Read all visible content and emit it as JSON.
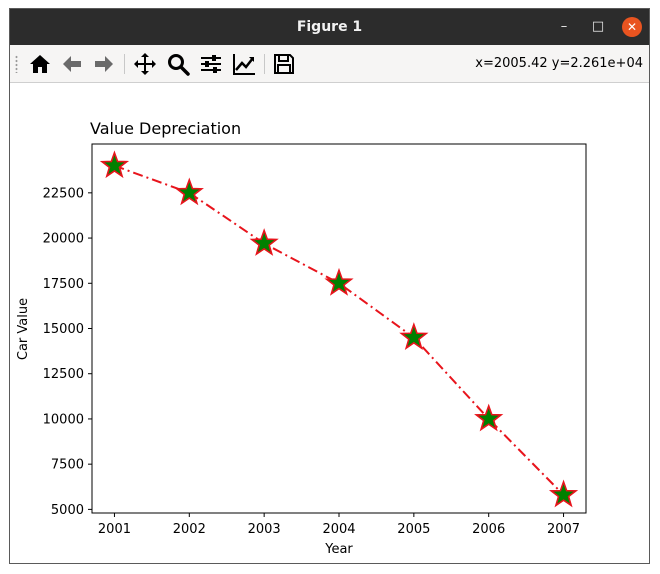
{
  "window": {
    "title": "Figure 1",
    "minimize_label": "–",
    "maximize_label": "□",
    "close_label": "✕"
  },
  "toolbar": {
    "buttons": [
      {
        "name": "home-button",
        "icon": "home-icon"
      },
      {
        "name": "back-button",
        "icon": "arrow-left-icon"
      },
      {
        "name": "forward-button",
        "icon": "arrow-right-icon"
      },
      {
        "name": "pan-button",
        "icon": "move-icon"
      },
      {
        "name": "zoom-button",
        "icon": "magnifier-icon"
      },
      {
        "name": "subplots-button",
        "icon": "sliders-icon"
      },
      {
        "name": "edit-axes-button",
        "icon": "chart-line-icon"
      },
      {
        "name": "save-button",
        "icon": "floppy-disk-icon"
      }
    ],
    "coords_readout": "x=2005.42 y=2.261e+04"
  },
  "chart_data": {
    "type": "line",
    "title": "Value Depreciation",
    "xlabel": "Year",
    "ylabel": "Car Value",
    "x": [
      2001,
      2002,
      2003,
      2004,
      2005,
      2006,
      2007
    ],
    "x_ticks": [
      "2001",
      "2002",
      "2003",
      "2004",
      "2005",
      "2006",
      "2007"
    ],
    "y_ticks": [
      "5000",
      "7500",
      "10000",
      "12500",
      "15000",
      "17500",
      "20000",
      "22500"
    ],
    "xlim": [
      2000.7,
      2007.3
    ],
    "ylim": [
      4800,
      25200
    ],
    "series": [
      {
        "values": [
          24000,
          22500,
          19700,
          17500,
          14500,
          10000,
          5800
        ],
        "line_color": "#e8141c",
        "line_style": "dash-dot",
        "marker": "star",
        "marker_face": "#008000",
        "marker_edge": "#e8141c"
      }
    ],
    "grid": false,
    "legend": "none"
  }
}
